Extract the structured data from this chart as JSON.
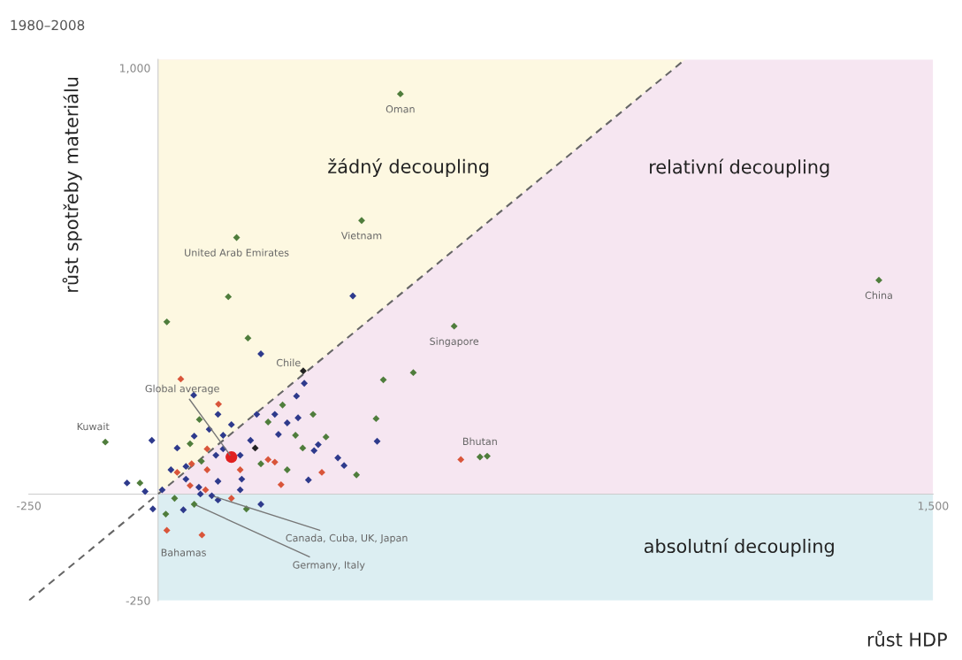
{
  "chart_data": {
    "type": "scatter",
    "title": "1980–2008",
    "xlabel": "růst HDP",
    "ylabel": "růst spotřeby materiálu",
    "xlim": [
      -250,
      1500
    ],
    "ylim": [
      -250,
      1020
    ],
    "xticks": [
      {
        "value": -250,
        "label": "-250"
      },
      {
        "value": 1500,
        "label": "1,500"
      }
    ],
    "yticks": [
      {
        "value": -250,
        "label": "-250"
      },
      {
        "value": 1000,
        "label": "1,000"
      }
    ],
    "grid": false,
    "marker": "diamond",
    "bands": [
      {
        "axis": "y",
        "from": -250,
        "to": 0,
        "label": "absolutní decoupling",
        "color": "#dceef2"
      },
      {
        "axis": "y",
        "from": 0,
        "to": 1020,
        "label": "relativní decoupling",
        "color": "#f6e6f1"
      }
    ],
    "series": [
      {
        "type": "line",
        "color": "#666666",
        "line_style": "dashed",
        "marker": "none",
        "x": [
          -250,
          1020
        ],
        "values": [
          -250,
          1020
        ]
      },
      {
        "color": "#4f7d3c",
        "x": [
          469,
          394,
          152,
          1395,
          573,
          623,
          637,
          -102,
          174,
          80,
          62,
          241,
          213,
          300,
          266,
          325,
          280,
          436,
          494,
          422,
          384,
          199,
          250,
          32,
          15,
          -35,
          70,
          84,
          136,
          17,
          171
        ],
        "values": [
          939,
          642,
          602,
          502,
          394,
          87,
          89,
          122,
          366,
          175,
          118,
          209,
          169,
          187,
          138,
          134,
          108,
          268,
          285,
          177,
          45,
          71,
          57,
          -10,
          -47,
          26,
          -24,
          77,
          463,
          404,
          -35
        ]
      },
      {
        "color": "#2e3a8c",
        "x": [
          199,
          69,
          116,
          142,
          99,
          126,
          70,
          37,
          179,
          283,
          268,
          191,
          226,
          271,
          233,
          310,
          302,
          424,
          348,
          360,
          291,
          159,
          199,
          104,
          79,
          54,
          25,
          8,
          49,
          -10,
          -25,
          -60,
          -12,
          116,
          112,
          126,
          159,
          54,
          116,
          82,
          162,
          377,
          250
        ],
        "values": [
          329,
          232,
          187,
          163,
          152,
          138,
          136,
          108,
          126,
          260,
          230,
          187,
          187,
          179,
          140,
          116,
          102,
          124,
          85,
          67,
          33,
          10,
          -24,
          -4,
          16,
          35,
          57,
          10,
          -37,
          -35,
          6,
          26,
          126,
          30,
          91,
          106,
          91,
          65,
          -14,
          0,
          35,
          465,
          167
        ]
      },
      {
        "color": "#d9553a",
        "x": [
          44,
          117,
          95,
          317,
          238,
          213,
          226,
          159,
          142,
          92,
          95,
          65,
          37,
          62,
          586,
          85,
          17
        ],
        "values": [
          270,
          211,
          106,
          51,
          22,
          81,
          75,
          57,
          -10,
          10,
          57,
          71,
          51,
          20,
          81,
          -96,
          -85
        ]
      },
      {
        "color": "#222222",
        "x": [
          281,
          188
        ],
        "values": [
          289,
          108
        ]
      },
      {
        "color": "#e02020",
        "marker": "circle",
        "x": [
          142
        ],
        "values": [
          87
        ]
      }
    ],
    "annotations": [
      {
        "text": "Oman",
        "x": 469,
        "y": 939
      },
      {
        "text": "Vietnam",
        "x": 394,
        "y": 642
      },
      {
        "text": "United Arab Emirates",
        "x": 152,
        "y": 602
      },
      {
        "text": "China",
        "x": 1395,
        "y": 502
      },
      {
        "text": "Singapore",
        "x": 573,
        "y": 394
      },
      {
        "text": "Chile",
        "x": 281,
        "y": 289
      },
      {
        "text": "Global average",
        "x": 142,
        "y": 87
      },
      {
        "text": "Kuwait",
        "x": -102,
        "y": 122
      },
      {
        "text": "Bhutan",
        "x": 623,
        "y": 87
      },
      {
        "text": "Bahamas",
        "x": 85,
        "y": -96
      },
      {
        "text": "Canada, Cuba, UK, Japan",
        "x": 104,
        "y": -4
      },
      {
        "text": "Germany, Italy",
        "x": 70,
        "y": -24
      },
      "žádný decoupling"
    ]
  }
}
